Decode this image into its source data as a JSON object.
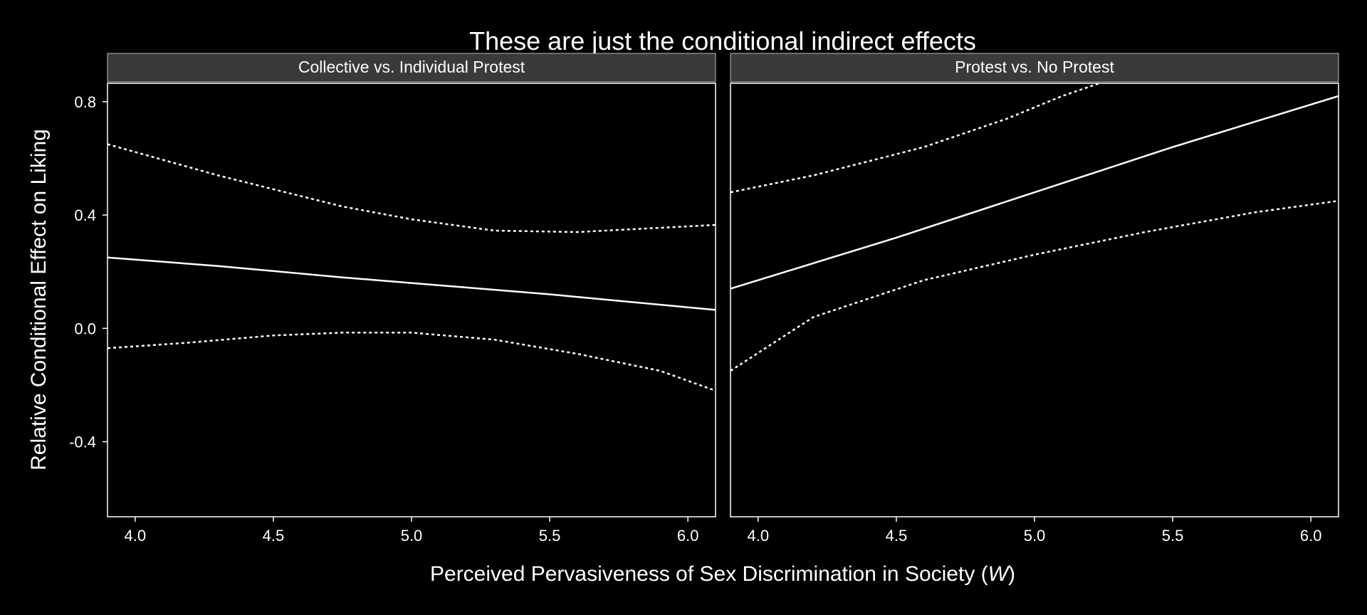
{
  "colors": {
    "background": "#000000",
    "strip": "#3a3a3a",
    "foreground": "#ffffff"
  },
  "chart_data": {
    "type": "line",
    "title": "These are just the conditional indirect effects",
    "xlabel_prefix": "Perceived Pervasiveness of Sex Discrimination in Society (",
    "xlabel_var": "W",
    "xlabel_suffix": ")",
    "ylabel": "Relative Conditional Effect on Liking",
    "xlim": [
      3.9,
      6.1
    ],
    "ylim": [
      -0.665,
      0.865
    ],
    "xticks": [
      4.0,
      4.5,
      5.0,
      5.5,
      6.0
    ],
    "xtick_labels": [
      "4.0",
      "4.5",
      "5.0",
      "5.5",
      "6.0"
    ],
    "yticks": [
      0.8,
      0.4,
      0.0,
      -0.4
    ],
    "ytick_labels": [
      "0.8",
      "0.4",
      "0.0",
      "-0.4"
    ],
    "panels": [
      {
        "label": "Collective vs. Individual Protest",
        "series": [
          {
            "name": "estimate",
            "style": "solid",
            "x": [
              3.9,
              4.3,
              4.75,
              5.0,
              5.5,
              6.1
            ],
            "y": [
              0.25,
              0.22,
              0.18,
              0.16,
              0.12,
              0.065
            ]
          },
          {
            "name": "upper",
            "style": "dotted",
            "x": [
              3.9,
              4.3,
              4.75,
              5.0,
              5.3,
              5.6,
              5.9,
              6.1
            ],
            "y": [
              0.65,
              0.54,
              0.43,
              0.385,
              0.345,
              0.34,
              0.355,
              0.365
            ]
          },
          {
            "name": "lower",
            "style": "dotted",
            "x": [
              3.9,
              4.2,
              4.5,
              4.75,
              5.0,
              5.3,
              5.6,
              5.9,
              6.1
            ],
            "y": [
              -0.07,
              -0.05,
              -0.025,
              -0.015,
              -0.015,
              -0.04,
              -0.09,
              -0.15,
              -0.22
            ]
          }
        ]
      },
      {
        "label": "Protest vs. No Protest",
        "series": [
          {
            "name": "estimate",
            "style": "solid",
            "x": [
              3.9,
              4.5,
              5.0,
              5.5,
              6.1
            ],
            "y": [
              0.14,
              0.32,
              0.48,
              0.64,
              0.82
            ]
          },
          {
            "name": "upper",
            "style": "dotted",
            "x": [
              3.9,
              4.2,
              4.6,
              4.9,
              5.1,
              5.25
            ],
            "y": [
              0.48,
              0.54,
              0.64,
              0.74,
              0.82,
              0.87
            ]
          },
          {
            "name": "lower",
            "style": "dotted",
            "x": [
              3.9,
              4.2,
              4.6,
              5.0,
              5.4,
              5.8,
              6.1
            ],
            "y": [
              -0.15,
              0.04,
              0.17,
              0.26,
              0.34,
              0.41,
              0.45
            ]
          }
        ]
      }
    ]
  }
}
